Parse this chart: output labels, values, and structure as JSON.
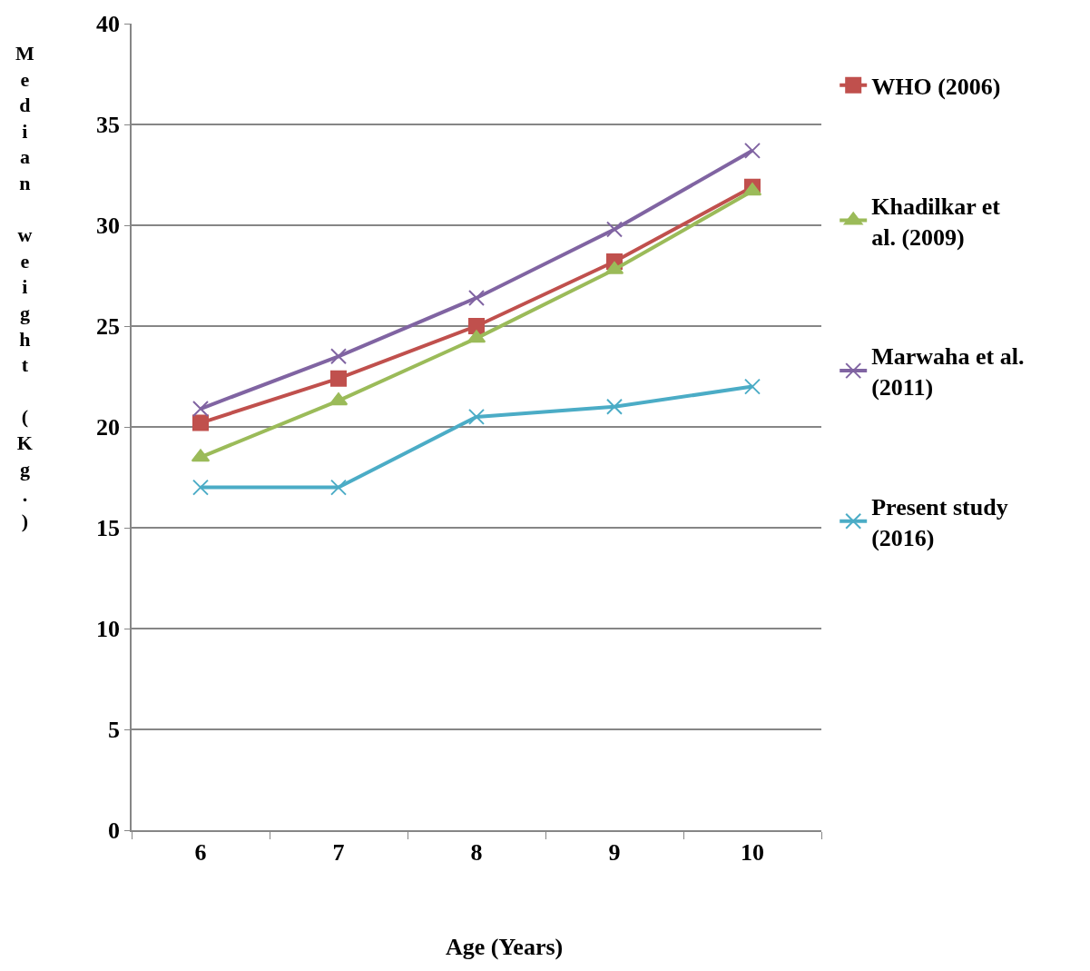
{
  "chart_data": {
    "type": "line",
    "xlabel": "Age (Years)",
    "ylabel": "Median weight (Kg.)",
    "categories": [
      "6",
      "7",
      "8",
      "9",
      "10"
    ],
    "series": [
      {
        "name": "WHO (2006)",
        "color": "#c0504d",
        "marker": "square",
        "values": [
          20.2,
          22.4,
          25.0,
          28.2,
          31.9
        ]
      },
      {
        "name": "Khadilkar et al. (2009)",
        "color": "#9bbb59",
        "marker": "triangle",
        "values": [
          18.5,
          21.3,
          24.4,
          27.8,
          31.7
        ]
      },
      {
        "name": "Marwaha et al. (2011)",
        "color": "#8064a2",
        "marker": "cross",
        "values": [
          20.9,
          23.5,
          26.4,
          29.8,
          33.7
        ]
      },
      {
        "name": "Present study (2016)",
        "color": "#4bacc6",
        "marker": "cross",
        "values": [
          17,
          17,
          20.5,
          21,
          22
        ]
      }
    ],
    "ylim": [
      0,
      40
    ],
    "yticks": [
      0,
      5,
      10,
      15,
      20,
      25,
      30,
      35,
      40
    ],
    "grid": "y",
    "legend": "right",
    "line_style": "solid"
  }
}
